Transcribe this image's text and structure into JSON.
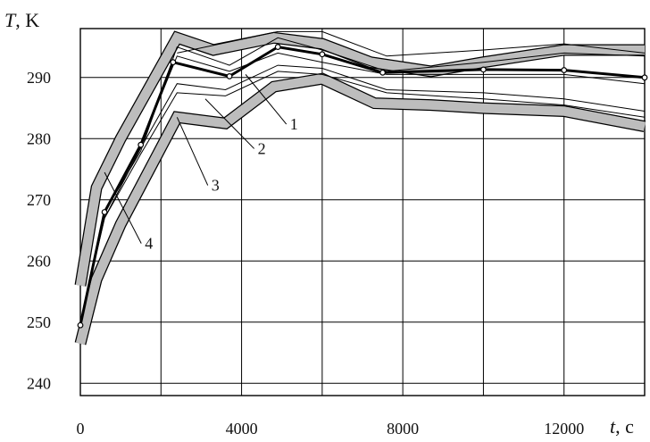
{
  "chart_data": {
    "type": "line",
    "title": "",
    "xlabel_var": "t",
    "xlabel_unit": ", c",
    "ylabel_var": "T",
    "ylabel_unit": ", K",
    "xlim": [
      0,
      14000
    ],
    "ylim": [
      238,
      298
    ],
    "xticks": [
      0,
      4000,
      8000,
      12000
    ],
    "xtick_labels": [
      "0",
      "4000",
      "8000",
      "12000"
    ],
    "yticks": [
      240,
      250,
      260,
      270,
      280,
      290
    ],
    "ytick_labels": [
      "240",
      "250",
      "260",
      "270",
      "280",
      "290"
    ],
    "grid_x": [
      0,
      2000,
      4000,
      6000,
      8000,
      10000,
      12000,
      14000
    ],
    "grid_y": [
      240,
      250,
      260,
      270,
      280,
      290
    ],
    "grid": true,
    "series": [
      {
        "role": "band-upper",
        "x": [
          0,
          400,
          1000,
          2400,
          3300,
          4800,
          6000,
          7200,
          8700,
          10000,
          12000,
          14000
        ],
        "y": [
          256,
          272,
          280,
          296.5,
          294.5,
          296.5,
          295.5,
          292.5,
          291,
          292.5,
          294.5,
          294.5
        ]
      },
      {
        "role": "band-lower",
        "x": [
          0,
          400,
          1000,
          2400,
          3600,
          4800,
          6000,
          7300,
          8700,
          10000,
          12000,
          14000
        ],
        "y": [
          246.5,
          257,
          266,
          283.5,
          282.5,
          288.5,
          289.8,
          285.8,
          285.5,
          285,
          284.5,
          282
        ]
      },
      {
        "role": "measured",
        "x": [
          0,
          600,
          1500,
          2300,
          3700,
          4900,
          6000,
          7500,
          10000,
          12000,
          14000
        ],
        "y": [
          249.5,
          268,
          279,
          292.5,
          290.2,
          295,
          293.8,
          290.8,
          291.3,
          291.2,
          290
        ]
      },
      {
        "role": "thin-1",
        "x": [
          0,
          600,
          1500,
          2400,
          3700,
          4900,
          6000,
          7600,
          10000,
          12000,
          14000
        ],
        "y": [
          250,
          268,
          278,
          295,
          292,
          296.5,
          294.5,
          291,
          292.5,
          294,
          293.5
        ]
      },
      {
        "role": "thin-2",
        "x": [
          0,
          600,
          1500,
          2400,
          3700,
          4900,
          6000,
          7600,
          10000,
          12000,
          14000
        ],
        "y": [
          250,
          268,
          279,
          293.5,
          291,
          294,
          292.5,
          290.5,
          290.5,
          290.5,
          289
        ]
      },
      {
        "role": "thin-3",
        "x": [
          0,
          600,
          1500,
          2400,
          3600,
          4900,
          6000,
          7600,
          10000,
          12000,
          14000
        ],
        "y": [
          250,
          267,
          278.5,
          289,
          288,
          292,
          291.5,
          288,
          287.5,
          286.5,
          284.5
        ]
      },
      {
        "role": "thin-4",
        "x": [
          0,
          600,
          1500,
          2400,
          3600,
          4900,
          6000,
          7600,
          10000,
          12000,
          14000
        ],
        "y": [
          250,
          267,
          277.5,
          287.5,
          287,
          291,
          290.5,
          287.5,
          286.5,
          285.5,
          283.5
        ]
      },
      {
        "role": "thin-5",
        "x": [
          2400,
          4900,
          6000,
          7600,
          10000,
          12000,
          14000
        ],
        "y": [
          294,
          297.5,
          297.5,
          293.5,
          294.5,
          295.5,
          294
        ]
      }
    ],
    "annotations": [
      {
        "label": "1",
        "x": 5200,
        "y": 281.5,
        "point": [
          4100,
          290.5
        ]
      },
      {
        "label": "2",
        "x": 4400,
        "y": 277.5,
        "point": [
          3100,
          286.5
        ]
      },
      {
        "label": "3",
        "x": 3250,
        "y": 271.5,
        "point": [
          2400,
          283.5
        ]
      },
      {
        "label": "4",
        "x": 1600,
        "y": 262,
        "point": [
          600,
          274.5
        ]
      }
    ]
  }
}
